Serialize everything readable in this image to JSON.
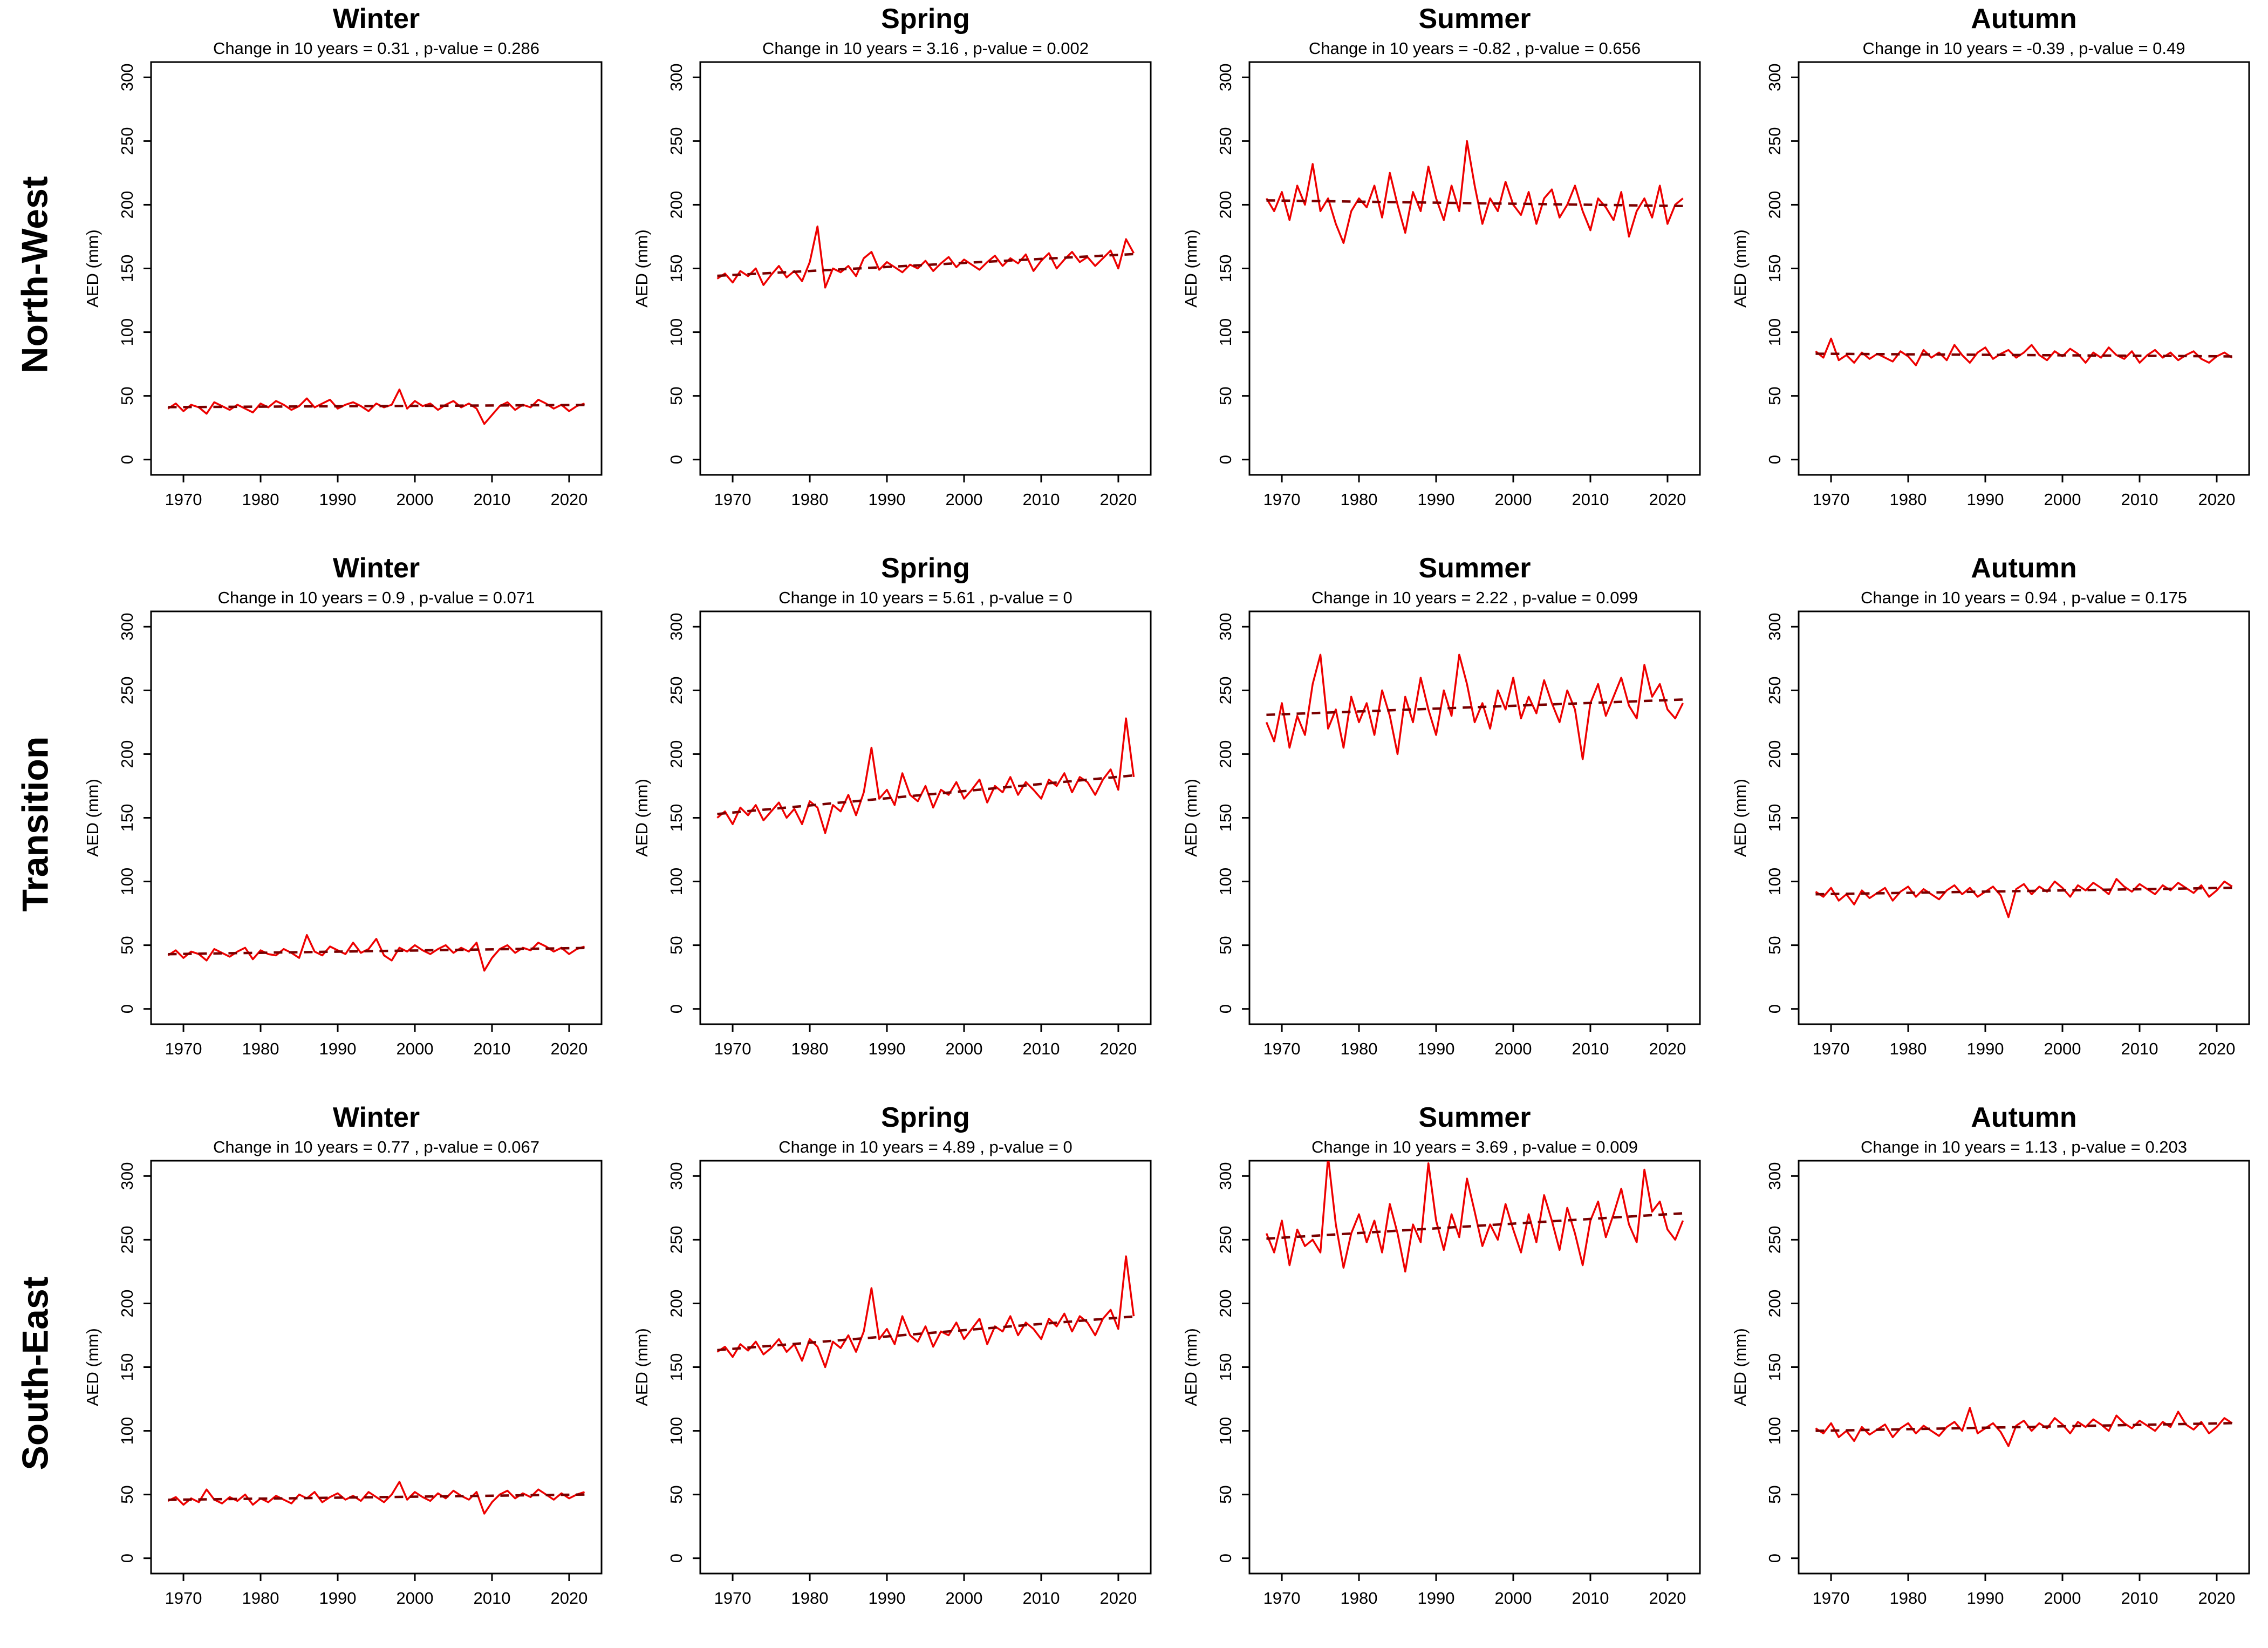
{
  "figure": {
    "rows": [
      {
        "label": "North-West"
      },
      {
        "label": "Transition"
      },
      {
        "label": "South-East"
      }
    ],
    "columns": [
      "Winter",
      "Spring",
      "Summer",
      "Autumn"
    ],
    "ylabel": "AED (mm)",
    "colors": {
      "series": "#ee0000",
      "trend": "#7a0000",
      "axis": "#000000",
      "background": "#ffffff"
    },
    "axis": {
      "ylim": [
        0,
        300
      ],
      "yticks": [
        0,
        50,
        100,
        150,
        200,
        250,
        300
      ],
      "xticks": [
        1970,
        1980,
        1990,
        2000,
        2010,
        2020
      ]
    },
    "years": [
      1968,
      1969,
      1970,
      1971,
      1972,
      1973,
      1974,
      1975,
      1976,
      1977,
      1978,
      1979,
      1980,
      1981,
      1982,
      1983,
      1984,
      1985,
      1986,
      1987,
      1988,
      1989,
      1990,
      1991,
      1992,
      1993,
      1994,
      1995,
      1996,
      1997,
      1998,
      1999,
      2000,
      2001,
      2002,
      2003,
      2004,
      2005,
      2006,
      2007,
      2008,
      2009,
      2010,
      2011,
      2012,
      2013,
      2014,
      2015,
      2016,
      2017,
      2018,
      2019,
      2020,
      2021,
      2022
    ]
  },
  "chart_data": [
    {
      "type": "line",
      "region": "North-West",
      "season": "Winter",
      "title": "Winter",
      "subtitle": "Change in 10 years = 0.31 , p-value = 0.286",
      "change_per_decade": 0.31,
      "p_value": 0.286,
      "xlabel": "",
      "ylabel": "AED (mm)",
      "ylim": [
        0,
        300
      ],
      "values": [
        40,
        44,
        38,
        43,
        41,
        36,
        45,
        42,
        39,
        43,
        40,
        37,
        44,
        41,
        46,
        43,
        39,
        42,
        48,
        41,
        44,
        47,
        40,
        43,
        45,
        42,
        38,
        44,
        41,
        43,
        55,
        40,
        46,
        42,
        44,
        39,
        43,
        46,
        41,
        44,
        40,
        28,
        35,
        42,
        45,
        39,
        43,
        41,
        47,
        44,
        40,
        43,
        38,
        42,
        44
      ]
    },
    {
      "type": "line",
      "region": "North-West",
      "season": "Spring",
      "title": "Spring",
      "subtitle": "Change in 10 years = 3.16 , p-value = 0.002",
      "change_per_decade": 3.16,
      "p_value": 0.002,
      "xlabel": "",
      "ylabel": "AED (mm)",
      "ylim": [
        0,
        300
      ],
      "values": [
        142,
        146,
        139,
        148,
        144,
        150,
        137,
        145,
        152,
        143,
        148,
        140,
        155,
        183,
        135,
        150,
        147,
        152,
        144,
        158,
        163,
        149,
        155,
        151,
        147,
        153,
        150,
        156,
        148,
        154,
        159,
        151,
        157,
        153,
        149,
        155,
        160,
        152,
        158,
        154,
        161,
        148,
        156,
        162,
        150,
        157,
        163,
        155,
        159,
        152,
        158,
        164,
        150,
        173,
        162
      ]
    },
    {
      "type": "line",
      "region": "North-West",
      "season": "Summer",
      "title": "Summer",
      "subtitle": "Change in 10 years = -0.82 , p-value = 0.656",
      "change_per_decade": -0.82,
      "p_value": 0.656,
      "xlabel": "",
      "ylabel": "AED (mm)",
      "ylim": [
        0,
        300
      ],
      "values": [
        205,
        195,
        210,
        188,
        215,
        200,
        232,
        195,
        205,
        185,
        170,
        195,
        205,
        198,
        215,
        190,
        225,
        200,
        178,
        210,
        195,
        230,
        205,
        188,
        215,
        195,
        250,
        215,
        185,
        205,
        195,
        218,
        200,
        192,
        210,
        185,
        205,
        212,
        190,
        200,
        215,
        195,
        180,
        205,
        198,
        188,
        210,
        175,
        195,
        205,
        190,
        215,
        185,
        200,
        205
      ]
    },
    {
      "type": "line",
      "region": "North-West",
      "season": "Autumn",
      "title": "Autumn",
      "subtitle": "Change in 10 years = -0.39 , p-value = 0.49",
      "change_per_decade": -0.39,
      "p_value": 0.49,
      "xlabel": "",
      "ylabel": "AED (mm)",
      "ylim": [
        0,
        300
      ],
      "values": [
        85,
        80,
        95,
        78,
        82,
        76,
        84,
        79,
        83,
        80,
        77,
        85,
        81,
        74,
        86,
        80,
        84,
        78,
        90,
        82,
        76,
        84,
        88,
        79,
        83,
        86,
        80,
        84,
        90,
        82,
        78,
        85,
        81,
        87,
        83,
        76,
        84,
        80,
        88,
        82,
        79,
        85,
        76,
        82,
        86,
        80,
        84,
        78,
        82,
        85,
        79,
        76,
        81,
        84,
        80
      ]
    },
    {
      "type": "line",
      "region": "Transition",
      "season": "Winter",
      "title": "Winter",
      "subtitle": "Change in 10 years = 0.9 , p-value = 0.071",
      "change_per_decade": 0.9,
      "p_value": 0.071,
      "xlabel": "",
      "ylabel": "AED (mm)",
      "ylim": [
        0,
        300
      ],
      "values": [
        42,
        46,
        40,
        45,
        43,
        38,
        47,
        44,
        41,
        45,
        48,
        39,
        46,
        43,
        42,
        47,
        44,
        40,
        58,
        45,
        42,
        49,
        46,
        43,
        52,
        44,
        47,
        55,
        42,
        38,
        48,
        45,
        50,
        46,
        43,
        47,
        50,
        44,
        48,
        45,
        52,
        30,
        40,
        47,
        50,
        44,
        48,
        46,
        52,
        49,
        45,
        48,
        43,
        47,
        49
      ]
    },
    {
      "type": "line",
      "region": "Transition",
      "season": "Spring",
      "title": "Spring",
      "subtitle": "Change in 10 years = 5.61 , p-value = 0",
      "change_per_decade": 5.61,
      "p_value": 0,
      "xlabel": "",
      "ylabel": "AED (mm)",
      "ylim": [
        0,
        300
      ],
      "values": [
        150,
        155,
        145,
        158,
        152,
        160,
        148,
        155,
        162,
        150,
        157,
        145,
        163,
        158,
        138,
        160,
        155,
        168,
        152,
        170,
        205,
        165,
        172,
        160,
        185,
        168,
        163,
        175,
        158,
        172,
        168,
        178,
        165,
        172,
        180,
        162,
        175,
        170,
        182,
        168,
        178,
        172,
        165,
        180,
        175,
        185,
        170,
        182,
        178,
        168,
        180,
        188,
        172,
        228,
        182
      ]
    },
    {
      "type": "line",
      "region": "Transition",
      "season": "Summer",
      "title": "Summer",
      "subtitle": "Change in 10 years = 2.22 , p-value = 0.099",
      "change_per_decade": 2.22,
      "p_value": 0.099,
      "xlabel": "",
      "ylabel": "AED (mm)",
      "ylim": [
        0,
        300
      ],
      "values": [
        225,
        210,
        240,
        205,
        230,
        215,
        255,
        278,
        220,
        235,
        205,
        245,
        225,
        240,
        215,
        250,
        230,
        200,
        245,
        225,
        260,
        235,
        215,
        250,
        230,
        278,
        255,
        225,
        240,
        220,
        250,
        235,
        260,
        228,
        245,
        232,
        258,
        240,
        225,
        250,
        235,
        196,
        240,
        255,
        230,
        245,
        260,
        238,
        228,
        270,
        245,
        255,
        235,
        228,
        240
      ]
    },
    {
      "type": "line",
      "region": "Transition",
      "season": "Autumn",
      "title": "Autumn",
      "subtitle": "Change in 10 years = 0.94 , p-value = 0.175",
      "change_per_decade": 0.94,
      "p_value": 0.175,
      "xlabel": "",
      "ylabel": "AED (mm)",
      "ylim": [
        0,
        300
      ],
      "values": [
        92,
        88,
        95,
        85,
        90,
        82,
        93,
        87,
        91,
        95,
        85,
        92,
        96,
        88,
        94,
        90,
        86,
        93,
        97,
        90,
        95,
        88,
        92,
        96,
        89,
        72,
        94,
        98,
        90,
        96,
        92,
        100,
        95,
        88,
        97,
        93,
        99,
        95,
        90,
        102,
        96,
        92,
        98,
        94,
        90,
        97,
        93,
        99,
        95,
        91,
        97,
        88,
        93,
        100,
        96
      ]
    },
    {
      "type": "line",
      "region": "South-East",
      "season": "Winter",
      "title": "Winter",
      "subtitle": "Change in 10 years = 0.77 , p-value = 0.067",
      "change_per_decade": 0.77,
      "p_value": 0.067,
      "xlabel": "",
      "ylabel": "AED (mm)",
      "ylim": [
        0,
        300
      ],
      "values": [
        45,
        48,
        42,
        47,
        44,
        54,
        46,
        43,
        48,
        45,
        50,
        42,
        47,
        44,
        49,
        46,
        43,
        50,
        47,
        52,
        44,
        48,
        51,
        46,
        49,
        45,
        52,
        48,
        44,
        50,
        60,
        46,
        52,
        48,
        45,
        51,
        47,
        53,
        49,
        46,
        52,
        35,
        44,
        50,
        53,
        47,
        51,
        48,
        54,
        50,
        46,
        51,
        47,
        50,
        52
      ]
    },
    {
      "type": "line",
      "region": "South-East",
      "season": "Spring",
      "title": "Spring",
      "subtitle": "Change in 10 years = 4.89 , p-value = 0",
      "change_per_decade": 4.89,
      "p_value": 0,
      "xlabel": "",
      "ylabel": "AED (mm)",
      "ylim": [
        0,
        300
      ],
      "values": [
        162,
        166,
        158,
        168,
        163,
        170,
        160,
        165,
        172,
        162,
        168,
        155,
        172,
        166,
        150,
        170,
        165,
        175,
        162,
        178,
        212,
        172,
        180,
        168,
        190,
        175,
        170,
        182,
        166,
        178,
        175,
        185,
        172,
        180,
        188,
        168,
        182,
        178,
        190,
        175,
        185,
        180,
        172,
        188,
        182,
        192,
        178,
        190,
        185,
        175,
        188,
        195,
        180,
        237,
        190
      ]
    },
    {
      "type": "line",
      "region": "South-East",
      "season": "Summer",
      "title": "Summer",
      "subtitle": "Change in 10 years = 3.69 , p-value = 0.009",
      "change_per_decade": 3.69,
      "p_value": 0.009,
      "xlabel": "",
      "ylabel": "AED (mm)",
      "ylim": [
        0,
        300
      ],
      "values": [
        255,
        240,
        265,
        230,
        258,
        245,
        250,
        240,
        315,
        262,
        228,
        255,
        270,
        248,
        265,
        240,
        278,
        255,
        225,
        262,
        248,
        310,
        265,
        242,
        270,
        252,
        298,
        272,
        245,
        262,
        250,
        278,
        258,
        240,
        270,
        248,
        285,
        265,
        242,
        275,
        255,
        230,
        265,
        280,
        252,
        270,
        290,
        262,
        248,
        305,
        272,
        280,
        258,
        250,
        265
      ]
    },
    {
      "type": "line",
      "region": "South-East",
      "season": "Autumn",
      "title": "Autumn",
      "subtitle": "Change in 10 years = 1.13 , p-value = 0.203",
      "change_per_decade": 1.13,
      "p_value": 0.203,
      "xlabel": "",
      "ylabel": "AED (mm)",
      "ylim": [
        0,
        300
      ],
      "values": [
        102,
        98,
        106,
        95,
        100,
        92,
        103,
        97,
        101,
        105,
        95,
        102,
        106,
        98,
        104,
        100,
        96,
        103,
        107,
        100,
        118,
        98,
        102,
        106,
        99,
        88,
        104,
        108,
        100,
        106,
        102,
        110,
        105,
        98,
        107,
        103,
        109,
        105,
        100,
        112,
        106,
        102,
        108,
        104,
        100,
        107,
        103,
        115,
        105,
        101,
        107,
        98,
        103,
        110,
        106
      ]
    }
  ]
}
